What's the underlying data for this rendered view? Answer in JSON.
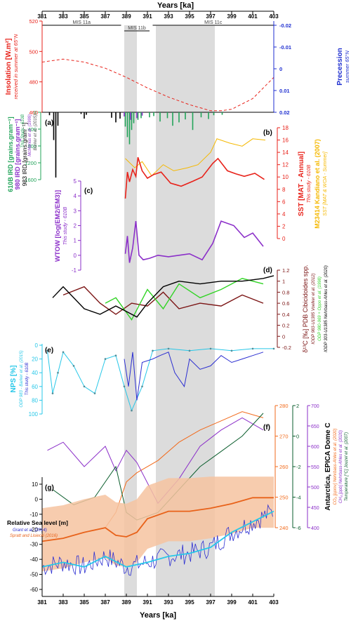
{
  "figure": {
    "x_axis": {
      "label": "Years [ka]",
      "min": 381,
      "max": 403,
      "ticks": [
        381,
        383,
        385,
        387,
        389,
        391,
        393,
        395,
        397,
        399,
        401,
        403
      ]
    },
    "mis_bars": [
      {
        "label": "MIS 11a",
        "x0": 381,
        "x1": 388.5
      },
      {
        "label": "MIS 11b",
        "x0": 388.8,
        "x1": 391.2
      },
      {
        "label": "MIS 11c",
        "x0": 391.5,
        "x1": 403
      }
    ],
    "shaded_intervals": [
      [
        388.8,
        390.0
      ],
      [
        391.8,
        397.4
      ]
    ],
    "panel_letters": [
      "(a)",
      "(b)",
      "(c)",
      "(d)",
      "(e)",
      "(f)",
      "(g)"
    ],
    "colors": {
      "insolation": "#e8221a",
      "precession": "#1f2fd0",
      "ird610": "#23a45a",
      "ird980": "#8b2fc9",
      "ird983": "#000000",
      "sst": "#e8221a",
      "m23414": "#f5b800",
      "wtow": "#8b2fc9",
      "d13c1385": "#000000",
      "d13c983": "#7b1414",
      "d13c980": "#33d427",
      "nps610": "#2c2fd1",
      "nps983": "#27c7e8",
      "co2": "#f26a1b",
      "ch4": "#8b2fc9",
      "temp": "#0a5d2c",
      "rsl_band": "#f6c3a0"
    }
  },
  "panels": {
    "insolation": {
      "ylabel": "Insolation [W.m²]",
      "sublabel": "received in summer at 65°N",
      "ticks": [
        520,
        500,
        480,
        460
      ]
    },
    "precession": {
      "ylabel": "Precession",
      "sublabel": "summer 65°N",
      "ticks": [
        "-0.02",
        "-0.01",
        "0",
        "0.01",
        "0.02"
      ]
    },
    "ird": {
      "labels": [
        "610B IRD [grains.gram⁻¹]",
        "980 IRD [grains.gram⁻¹]",
        "983 IRD [grains.gram⁻¹]"
      ],
      "sources": [
        "This Study - 610B",
        "McManus et al. (1999)",
        "Barker et al. (2015)"
      ],
      "ticks": [
        0,
        400,
        800,
        1200,
        1600
      ]
    },
    "sst": {
      "ylabel": "SST [MAT - Annual]",
      "sublabel": "This study - 610B",
      "ticks": [
        0,
        2,
        4,
        6,
        8,
        10,
        12,
        14,
        16,
        18
      ]
    },
    "m23414": {
      "ylabel": "M23414 Kandiano et al. (2007)",
      "sublabel": "SST [MAT & WOA - Summer]"
    },
    "wtow": {
      "ylabel": "WTOW [log(EM2/EM3)]",
      "sublabel": "This study - 610B",
      "ticks": [
        -1,
        0,
        1,
        2,
        3,
        4,
        5
      ]
    },
    "d13c": {
      "ylabel": "δ¹³C [‰] PDB Cibicidoides spp.",
      "sources": [
        "IODP 983-U1385 Voelker et al. (2012)",
        "ODP 980-969 + Oppo et al. (1998)",
        "IODP 303-U1385 Nehrbass-Ahles et al. (2020)"
      ],
      "ticks": [
        "1.2",
        "1",
        "0.8",
        "0.6",
        "0.4",
        "0.2",
        "0",
        "-0.2"
      ]
    },
    "nps": {
      "ylabel": "NPS [%]",
      "sources": [
        "ODP 983 - Barker et al. (2015)",
        "This study - 610B"
      ],
      "ticks": [
        0,
        20,
        40,
        60,
        80,
        100
      ]
    },
    "antarctica": {
      "ylabel": "Antarctica, EPICA Dome C",
      "sources": [
        "CO₂ [ppmv] Nehrbass-Ahles et al. (2020)",
        "CH₄ [ppb] Nehrbass-Ahles et al. (2020)",
        "Temperature [°C] Jouzel et al. (2007)"
      ],
      "co2_ticks": [
        240,
        250,
        260,
        270,
        280
      ],
      "temp_ticks": [
        -6,
        -4,
        -2,
        0,
        2
      ],
      "ch4_ticks": [
        400,
        450,
        500,
        550,
        600,
        650,
        700
      ]
    },
    "rsl": {
      "ylabel": "Relative Sea level [m]",
      "sources": [
        "Grant et al. (2014)",
        "Spratt and Lisiecki (2016)"
      ],
      "ticks": [
        10,
        0,
        -10,
        -20,
        -30,
        -40,
        -50,
        -60
      ]
    }
  },
  "chart_data": [
    {
      "type": "line",
      "title": "",
      "ylabel": "Insolation [W.m²]",
      "series": [
        {
          "name": "Insolation",
          "x": [
            381,
            383,
            385,
            387,
            389,
            391,
            393,
            395,
            397,
            398,
            399,
            401,
            403
          ],
          "values": [
            493,
            495,
            493,
            489,
            483,
            476,
            470,
            465,
            461,
            461,
            462,
            469,
            483
          ]
        }
      ],
      "ylim": [
        460,
        520
      ]
    },
    {
      "type": "bar",
      "ylabel": "610B IRD [grains.gram⁻¹]",
      "series": [
        {
          "name": "610B",
          "x": [
            388.9,
            389.1,
            389.3,
            389.5,
            389.7,
            390.1,
            390.4,
            391.2,
            391.6,
            392.2,
            392.9,
            393.4,
            394.0,
            394.6,
            395.3,
            396.1,
            396.8,
            397.3,
            398.1
          ],
          "values": [
            340,
            590,
            760,
            420,
            260,
            180,
            140,
            120,
            90,
            220,
            140,
            320,
            240,
            170,
            420,
            120,
            160,
            70,
            60
          ]
        },
        {
          "name": "983",
          "x": [
            381.7,
            382.1,
            382.3,
            382.5,
            384.7,
            385.0,
            385.2,
            387.6,
            388.0,
            388.4
          ],
          "values": [
            70,
            660,
            1550,
            320,
            40,
            150,
            60,
            130,
            240,
            150
          ]
        },
        {
          "name": "980",
          "x": [
            388.8,
            389.4,
            390.0,
            390.5
          ],
          "values": [
            100,
            180,
            140,
            80
          ]
        }
      ],
      "ylim": [
        0,
        1600
      ]
    },
    {
      "type": "line",
      "ylabel": "SST [MAT - Annual]",
      "series": [
        {
          "name": "610B SST",
          "x": [
            388.9,
            389.1,
            389.3,
            389.6,
            389.9,
            390.1,
            390.5,
            391.0,
            391.6,
            392.3,
            393.2,
            394.2,
            395.3,
            396.2,
            397.2,
            397.7,
            398.6,
            399.4,
            400.2,
            401.2,
            402.1
          ],
          "values": [
            6.5,
            10.8,
            9.2,
            11.2,
            10.1,
            13.2,
            11.0,
            9.8,
            10.4,
            10.8,
            9.0,
            8.5,
            9.3,
            10.0,
            12.2,
            13.0,
            11.0,
            10.5,
            10.1,
            10.6,
            9.6
          ]
        },
        {
          "name": "M23414",
          "x": [
            388.9,
            389.8,
            390.5,
            391.4,
            392.5,
            393.5,
            394.8,
            395.8,
            397.0,
            397.6,
            398.8,
            400.0,
            401.0,
            402.2
          ],
          "values": [
            13.0,
            11.5,
            12.5,
            10.2,
            12.0,
            11.0,
            11.5,
            12.0,
            14.0,
            16.2,
            15.5,
            15.0,
            16.2,
            16.0
          ]
        }
      ],
      "ylim": [
        0,
        18
      ]
    },
    {
      "type": "line",
      "ylabel": "WTOW [log(EM2/EM3)]",
      "series": [
        {
          "name": "610B WTOW",
          "x": [
            388.9,
            389.1,
            389.3,
            389.6,
            389.9,
            390.2,
            390.6,
            391.2,
            392.0,
            393.0,
            394.0,
            395.0,
            396.2,
            397.2,
            398.0,
            399.2,
            400.2,
            401.0,
            402.0
          ],
          "values": [
            0.1,
            1.3,
            -0.5,
            0.5,
            2.3,
            0.0,
            -0.3,
            -0.2,
            0.0,
            -0.1,
            0.0,
            0.1,
            -0.3,
            0.8,
            2.3,
            2.0,
            1.2,
            1.5,
            0.6
          ]
        }
      ],
      "ylim": [
        -1,
        5
      ]
    },
    {
      "type": "line",
      "ylabel": "δ¹³C [‰] PDB Cibicidoides spp.",
      "series": [
        {
          "name": "U1385",
          "x": [
            382.0,
            383.0,
            385.0,
            386.5,
            388.0,
            389.0,
            390.0,
            391.0,
            392.5,
            394.0,
            396.0,
            398.0,
            400.0,
            402.0,
            403.0
          ],
          "values": [
            0.7,
            0.9,
            0.5,
            0.4,
            0.55,
            0.45,
            0.35,
            0.6,
            0.9,
            1.0,
            0.95,
            1.0,
            1.0,
            1.05,
            1.1
          ]
        },
        {
          "name": "983",
          "x": [
            383.0,
            385.0,
            386.5,
            388.0,
            389.5,
            391.0,
            392.5,
            394.0,
            396.0,
            398.0,
            400.0,
            402.0
          ],
          "values": [
            0.75,
            0.9,
            0.6,
            0.4,
            0.6,
            0.55,
            0.8,
            0.5,
            0.6,
            0.55,
            0.75,
            0.6
          ]
        },
        {
          "name": "980",
          "x": [
            387.0,
            388.0,
            389.5,
            391.0,
            392.5,
            394.0,
            396.0,
            398.0,
            400.0,
            402.0
          ],
          "values": [
            0.6,
            0.7,
            0.3,
            0.85,
            0.5,
            0.95,
            0.7,
            0.85,
            1.05,
            0.95
          ]
        }
      ],
      "ylim": [
        -0.2,
        1.2
      ]
    },
    {
      "type": "line",
      "ylabel": "NPS [%]",
      "series": [
        {
          "name": "983 NPS",
          "x": [
            381.5,
            382.0,
            382.5,
            383.0,
            384.0,
            385.0,
            386.0,
            387.0,
            388.0,
            388.8,
            389.5,
            390.5,
            391.5,
            393.0,
            395.0,
            397.0,
            399.0,
            401.0,
            403.0
          ],
          "values": [
            8,
            70,
            40,
            10,
            30,
            60,
            70,
            20,
            15,
            60,
            95,
            60,
            8,
            5,
            8,
            5,
            8,
            5,
            5
          ]
        },
        {
          "name": "610B NPS",
          "x": [
            388.8,
            389.2,
            389.6,
            390.0,
            390.5,
            391.5,
            392.2,
            393.0,
            393.6,
            394.5,
            395.0,
            396.0,
            397.0,
            398.0,
            399.0,
            400.0,
            401.0,
            402.0
          ],
          "values": [
            20,
            60,
            10,
            80,
            25,
            20,
            15,
            10,
            40,
            60,
            20,
            35,
            30,
            15,
            25,
            20,
            15,
            10
          ]
        }
      ],
      "ylim": [
        0,
        100
      ]
    },
    {
      "type": "line",
      "ylabel": "Antarctica, EPICA Dome C",
      "series": [
        {
          "name": "CO₂",
          "x": [
            387.0,
            388.0,
            389.0,
            390.0,
            392.0,
            394.0,
            396.0,
            398.0,
            400.0,
            402.0
          ],
          "values": [
            240,
            245,
            255,
            258,
            262,
            268,
            272,
            275,
            278,
            276
          ]
        },
        {
          "name": "CH₄",
          "x": [
            381.5,
            383.0,
            385.0,
            387.0,
            388.0,
            389.0,
            390.0,
            392.0,
            394.0,
            396.0,
            398.0,
            400.0,
            402.0
          ],
          "values": [
            590,
            610,
            550,
            600,
            540,
            590,
            560,
            460,
            520,
            600,
            640,
            670,
            640
          ]
        },
        {
          "name": "Temperature",
          "x": [
            382.0,
            384.0,
            386.0,
            388.0,
            389.0,
            390.0,
            392.0,
            394.0,
            396.0,
            398.0,
            400.0,
            402.0
          ],
          "values": [
            -3.5,
            -4.5,
            -4.0,
            -2.0,
            -5.0,
            -5.5,
            -5.0,
            -3.5,
            -2.0,
            -1.0,
            0.0,
            1.5
          ]
        }
      ]
    },
    {
      "type": "line",
      "ylabel": "Relative Sea level [m]",
      "series": [
        {
          "name": "Spratt and Lisiecki (2016)",
          "x": [
            381,
            383,
            385,
            387,
            388,
            389,
            390,
            391,
            393,
            395,
            397,
            399,
            401,
            403
          ],
          "values": [
            -28,
            -26,
            -22,
            -19,
            -24,
            -25,
            -22,
            -13,
            -8,
            -8,
            -6,
            -3,
            1,
            1
          ]
        },
        {
          "name": "Grant et al. (2014)",
          "x": [
            381,
            383,
            385,
            387,
            389,
            391,
            393,
            395,
            397,
            399,
            401,
            403
          ],
          "values": [
            -45,
            -42,
            -45,
            -38,
            -45,
            -42,
            -38,
            -36,
            -32,
            -22,
            -15,
            -8
          ]
        }
      ],
      "ylim": [
        -65,
        15
      ]
    }
  ]
}
